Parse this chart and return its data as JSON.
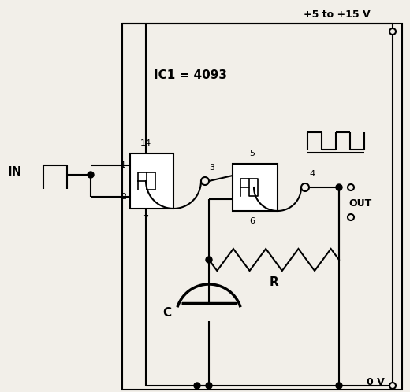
{
  "bg_color": "#f2efe9",
  "ic_label": "IC1 = 4093",
  "vcc_label": "+5 to +15 V",
  "in_label": "IN",
  "out_label": "OUT",
  "ov_label": "0 V",
  "r_label": "R",
  "c_label": "C",
  "p1": "1",
  "p2": "2",
  "p3": "3",
  "p14": "14",
  "p7": "7",
  "p4": "4",
  "p5": "5",
  "p6": "6"
}
